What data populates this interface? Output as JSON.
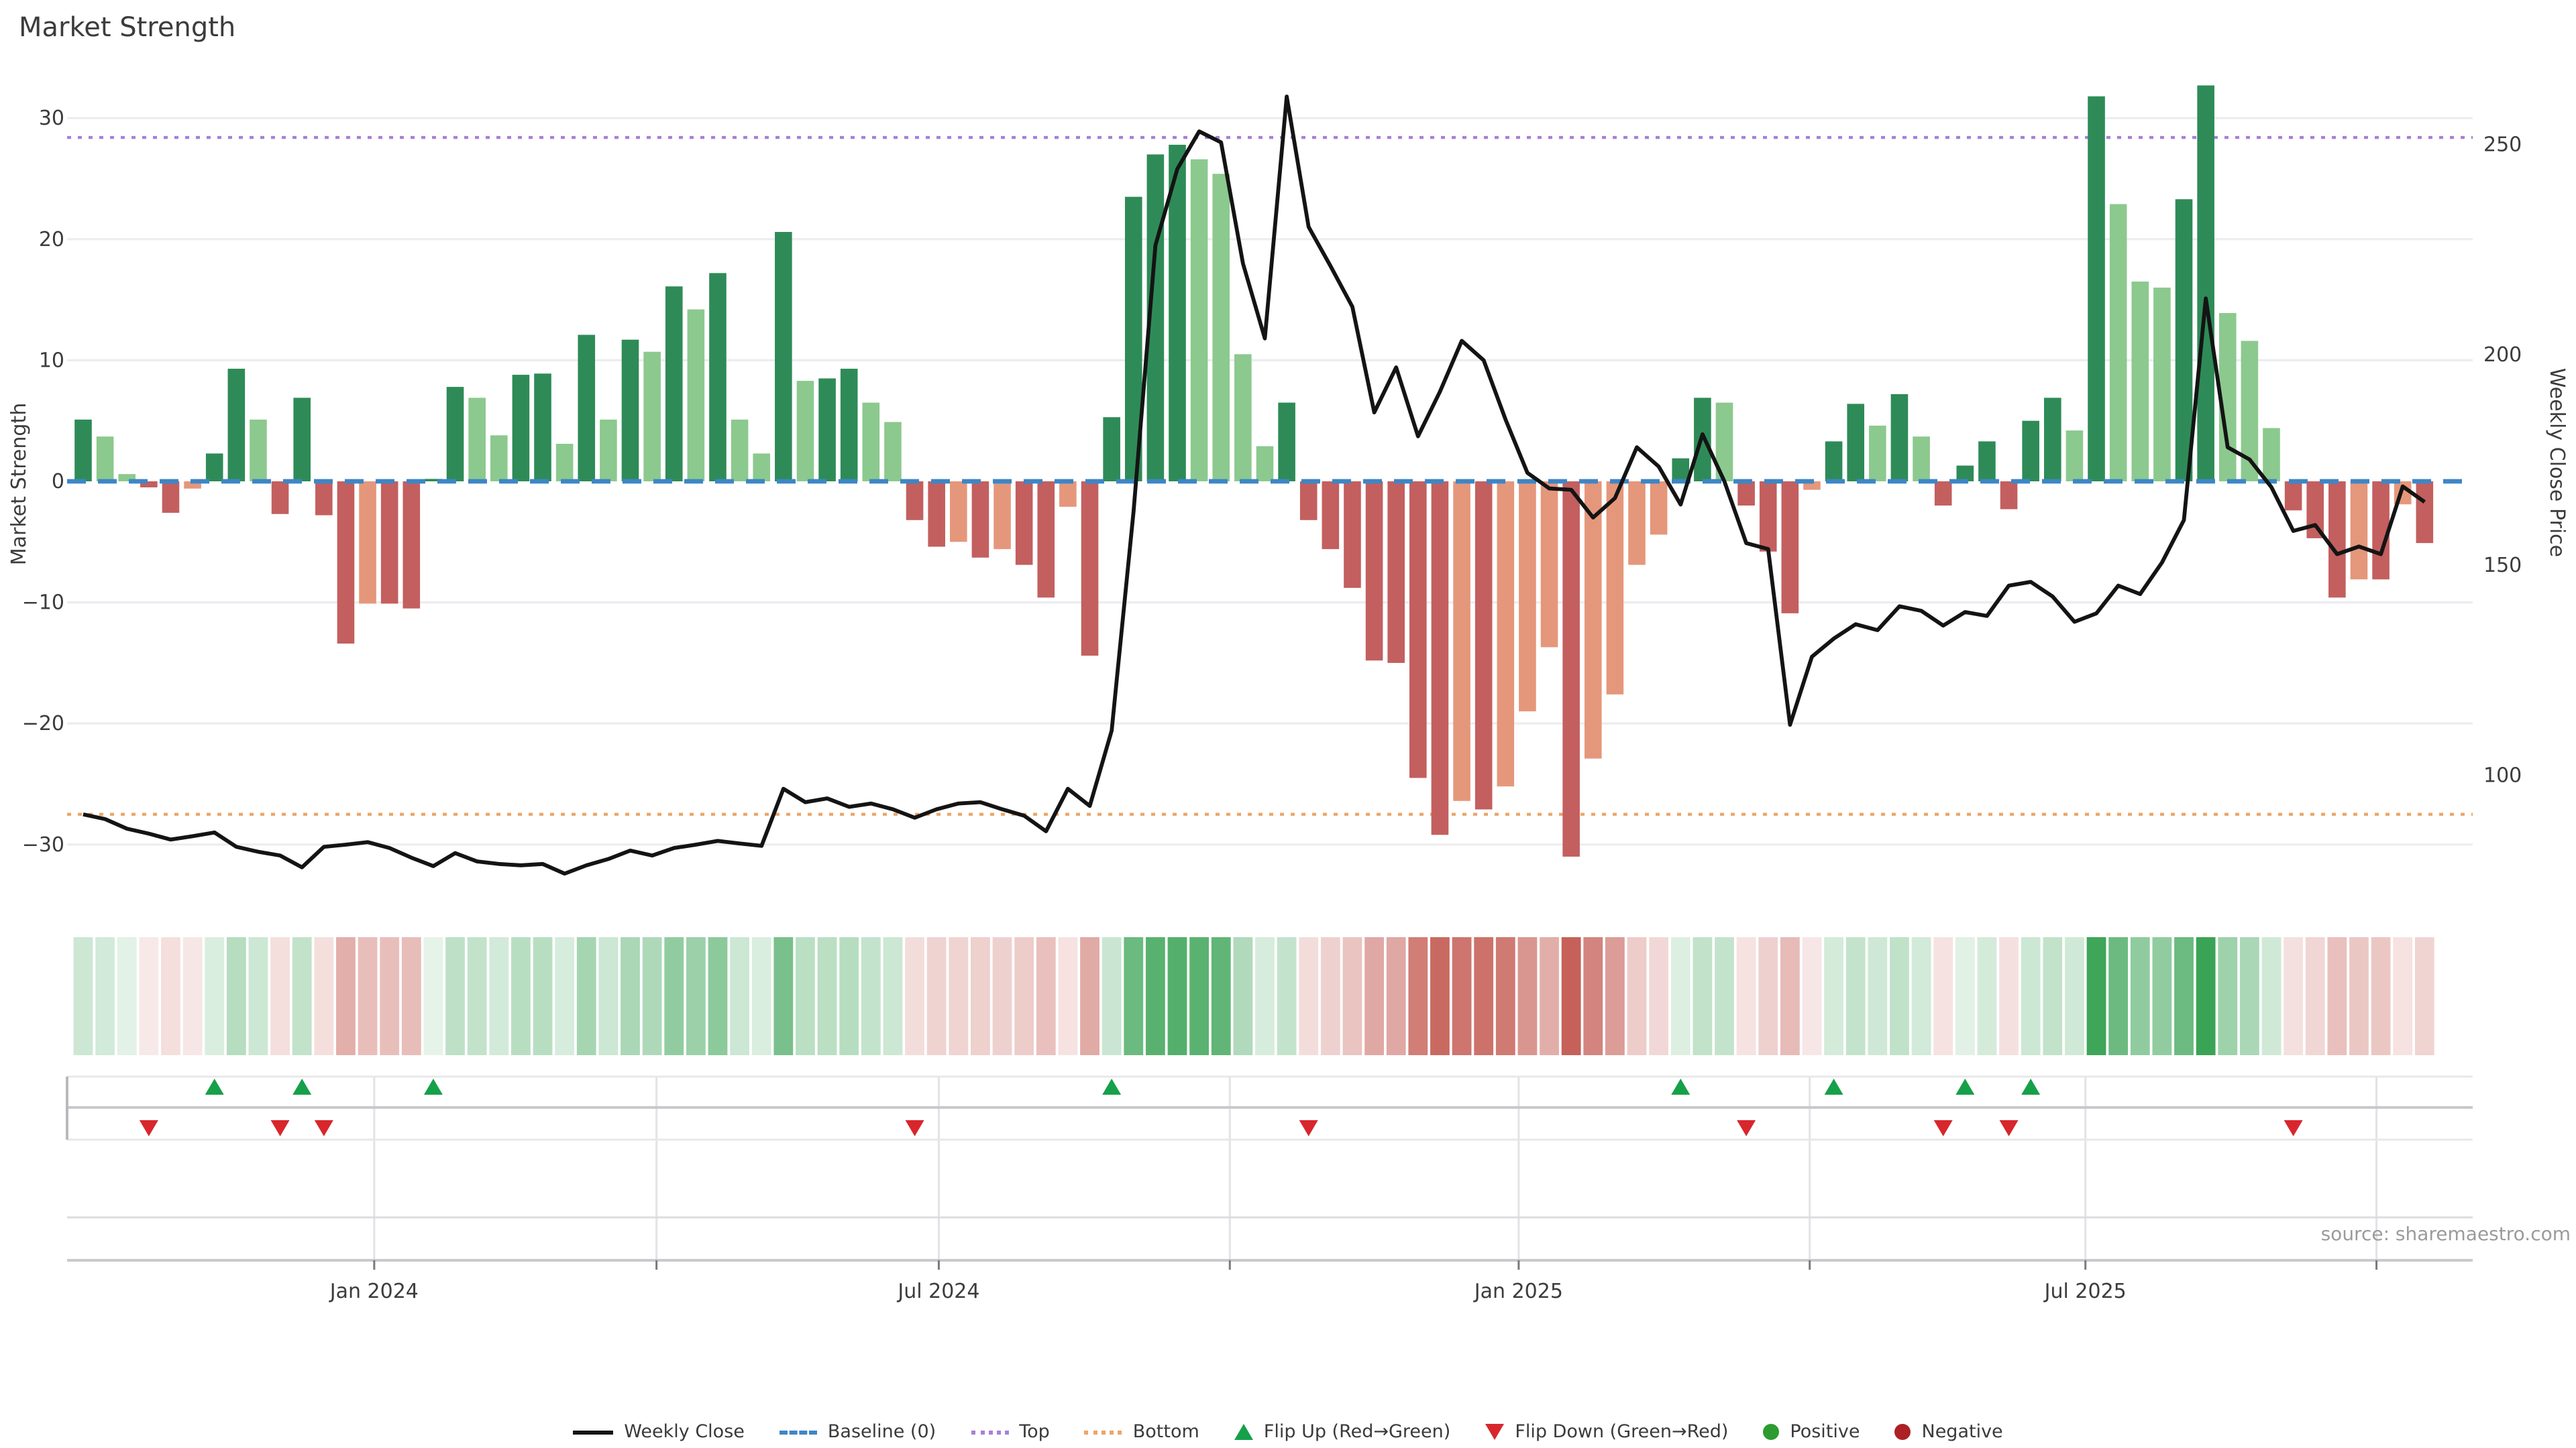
{
  "title": "Market Strength",
  "source": {
    "text": "source: sharemaestro.com"
  },
  "axes": {
    "left": {
      "title": "Market Strength",
      "ticks": [
        30,
        20,
        10,
        0,
        -10,
        -20,
        -30
      ]
    },
    "right": {
      "title": "Weekly Close Price",
      "ticks": [
        250,
        200,
        150,
        100
      ]
    },
    "x": {
      "tick_labels": [
        "Jan 2024",
        "Jul 2024",
        "Jan 2025",
        "Jul 2025"
      ]
    }
  },
  "legend": {
    "items": [
      {
        "label": "Weekly Close",
        "type": "line",
        "color": "#141414"
      },
      {
        "label": "Baseline (0)",
        "type": "dashed",
        "color": "#3d86c6"
      },
      {
        "label": "Top",
        "type": "dotted",
        "color": "#a87fd8"
      },
      {
        "label": "Bottom",
        "type": "dotted",
        "color": "#eca566"
      },
      {
        "label": "Flip Up (Red→Green)",
        "type": "triangle-up",
        "color": "#16a04a"
      },
      {
        "label": "Flip Down (Green→Red)",
        "type": "triangle-down",
        "color": "#d8262c"
      },
      {
        "label": "Positive",
        "type": "dot",
        "color": "#2c9c31"
      },
      {
        "label": "Negative",
        "type": "dot",
        "color": "#ad2024"
      }
    ]
  },
  "colors": {
    "bar_pos_up": "#2e8b57",
    "bar_pos_down": "#8cc98e",
    "bar_neg_down": "#c35f5f",
    "bar_neg_up": "#e5977b",
    "price_line": "#141414",
    "baseline": "#3d86c6",
    "top_line": "#a87fd8",
    "bottom_line": "#eca566",
    "grid": "#ececf1",
    "axis_text": "#3c3c3c",
    "heat_pos": "#34a050",
    "heat_neg": "#c2554c",
    "flip_up": "#16a04a",
    "flip_down": "#d8262c"
  },
  "chart_data": {
    "type": "bar+line",
    "x_unit": "weekly",
    "n_weeks": 108,
    "x_ticks": [
      {
        "label": "Jan 2024",
        "week": 13.3
      },
      {
        "label": "Jul 2024",
        "week": 39.1
      },
      {
        "label": "Jan 2025",
        "week": 65.6
      },
      {
        "label": "Jul 2025",
        "week": 91.5
      }
    ],
    "quarter_gridline_weeks": [
      13.3,
      26.2,
      39.1,
      52.4,
      65.6,
      78.9,
      91.5,
      104.8
    ],
    "left_axis_ticks": [
      30,
      20,
      10,
      0,
      -10,
      -20,
      -30
    ],
    "right_axis_ticks": [
      250,
      200,
      150,
      100
    ],
    "reference_lines": {
      "baseline": 0,
      "top": 28.4,
      "bottom": -27.5
    },
    "series": [
      {
        "name": "Market Strength (bars)",
        "axis": "left",
        "values": [
          5.1,
          3.7,
          0.6,
          -0.5,
          -2.6,
          -0.6,
          2.3,
          9.3,
          5.1,
          -2.7,
          6.9,
          -2.8,
          -13.4,
          -10.1,
          -10.1,
          -10.5,
          0.2,
          7.8,
          6.9,
          3.8,
          8.8,
          8.9,
          3.1,
          12.1,
          5.1,
          11.7,
          10.7,
          16.1,
          14.2,
          17.2,
          5.1,
          2.3,
          20.6,
          8.3,
          8.5,
          9.3,
          6.5,
          4.9,
          -3.2,
          -5.4,
          -5.0,
          -6.3,
          -5.6,
          -6.9,
          -9.6,
          -2.1,
          -14.4,
          5.3,
          23.5,
          27.0,
          27.8,
          26.6,
          25.4,
          10.5,
          2.9,
          6.5,
          -3.2,
          -5.6,
          -8.8,
          -14.8,
          -15.0,
          -24.5,
          -29.2,
          -26.4,
          -27.1,
          -25.2,
          -19.0,
          -13.7,
          -31.0,
          -22.9,
          -17.6,
          -6.9,
          -4.4,
          1.9,
          6.9,
          6.5,
          -2.0,
          -5.8,
          -10.9,
          -0.7,
          3.3,
          6.4,
          4.6,
          7.2,
          3.7,
          -2.0,
          1.3,
          3.3,
          -2.3,
          5.0,
          6.9,
          4.2,
          31.8,
          22.9,
          16.5,
          16.0,
          23.3,
          32.7,
          13.9,
          11.6,
          4.4,
          -2.4,
          -4.7,
          -9.6,
          -8.1,
          -8.1,
          -1.9,
          -5.1
        ]
      },
      {
        "name": "Weekly Close",
        "axis": "right",
        "values": [
          90.7,
          89.6,
          87.3,
          86.1,
          84.7,
          85.5,
          86.4,
          83,
          81.8,
          80.9,
          78.1,
          83,
          83.5,
          84.1,
          82.7,
          80.4,
          78.4,
          81.5,
          79.5,
          78.9,
          78.6,
          78.9,
          76.6,
          78.6,
          80.1,
          82.1,
          80.9,
          82.7,
          83.5,
          84.4,
          83.8,
          83.2,
          96.8,
          93.6,
          94.5,
          92.5,
          93.3,
          91.9,
          89.9,
          91.9,
          93.3,
          93.6,
          91.9,
          90.4,
          86.7,
          96.8,
          92.7,
          110.6,
          162.7,
          226,
          244.2,
          253.1,
          250.5,
          221.7,
          203.9,
          261.4,
          230.4,
          221.1,
          211.4,
          186.3,
          197,
          180.6,
          191.2,
          203.3,
          198.7,
          184.6,
          171.9,
          168.2,
          167.9,
          161.3,
          165.9,
          178,
          173.4,
          164.4,
          181.1,
          169.9,
          155.2,
          153.8,
          112,
          128.2,
          132.5,
          135.9,
          134.5,
          140.2,
          139.1,
          135.6,
          138.8,
          137.9,
          145.1,
          146,
          142.5,
          136.5,
          138.5,
          145.1,
          143.1,
          150.6,
          160.7,
          213.4,
          178,
          175.1,
          168.5,
          158.1,
          159.5,
          152.6,
          154.4,
          152.6,
          168.7,
          165
        ]
      }
    ],
    "heatmap": {
      "note": "color intensity proportional to |bar value|, green positive / red negative"
    },
    "flip_up_weeks": [
      6,
      10,
      16,
      47,
      73,
      80,
      86,
      89
    ],
    "flip_down_weeks": [
      3,
      9,
      11,
      38,
      56,
      76,
      85,
      88,
      101
    ]
  }
}
